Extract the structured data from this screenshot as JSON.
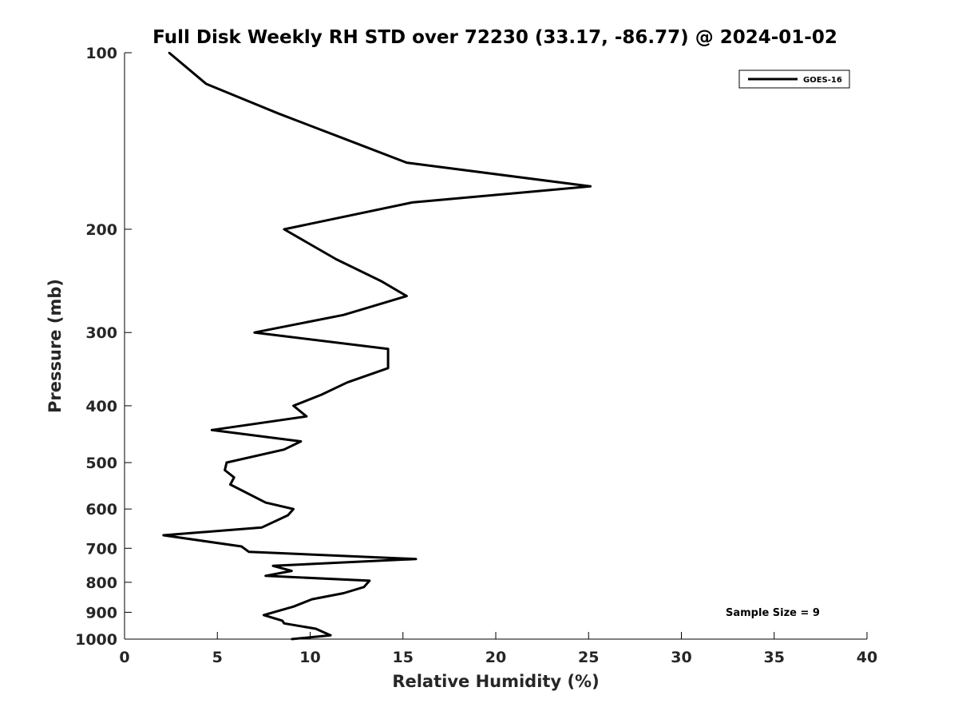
{
  "chart_data": {
    "type": "line",
    "title": "Full Disk Weekly RH STD over 72230 (33.17, -86.77) @ 2024-01-02",
    "xlabel": "Relative Humidity (%)",
    "ylabel": "Pressure (mb)",
    "xlim": [
      0,
      40
    ],
    "ylim": [
      100,
      1000
    ],
    "yscale": "log",
    "yaxis_reversed": true,
    "grid": false,
    "xticks": [
      0,
      5,
      10,
      15,
      20,
      25,
      30,
      35,
      40
    ],
    "xtick_labels": [
      "0",
      "5",
      "10",
      "15",
      "20",
      "25",
      "30",
      "35",
      "40"
    ],
    "yticks": [
      100,
      200,
      300,
      400,
      500,
      600,
      700,
      800,
      900,
      1000
    ],
    "ytick_labels": [
      "100",
      "200",
      "300",
      "400",
      "500",
      "600",
      "700",
      "800",
      "900",
      "1000"
    ],
    "legend": {
      "position": "top-right",
      "entries": [
        "GOES-16"
      ]
    },
    "annotation": "Sample Size = 9",
    "series": [
      {
        "name": "GOES-16",
        "color": "#000000",
        "x": [
          2.4,
          4.4,
          8.3,
          11.8,
          15.2,
          25.1,
          15.5,
          8.6,
          11.4,
          13.8,
          15.2,
          11.8,
          7.0,
          14.2,
          14.2,
          12.0,
          10.6,
          9.1,
          9.8,
          4.7,
          9.5,
          8.6,
          5.5,
          5.4,
          5.9,
          5.7,
          7.6,
          9.1,
          8.8,
          7.4,
          2.1,
          6.3,
          6.7,
          15.7,
          8.0,
          9.0,
          7.6,
          13.2,
          12.9,
          11.8,
          10.1,
          9.1,
          7.5,
          8.5,
          8.6,
          10.3,
          11.1,
          9.0
        ],
        "y": [
          100,
          113,
          127,
          140,
          154,
          169,
          180,
          200,
          225,
          245,
          260,
          280,
          300,
          320,
          345,
          365,
          383,
          400,
          417,
          440,
          460,
          475,
          500,
          515,
          530,
          545,
          585,
          600,
          615,
          645,
          665,
          695,
          710,
          730,
          750,
          765,
          780,
          795,
          815,
          835,
          855,
          880,
          910,
          930,
          940,
          960,
          985,
          1000
        ]
      }
    ]
  }
}
